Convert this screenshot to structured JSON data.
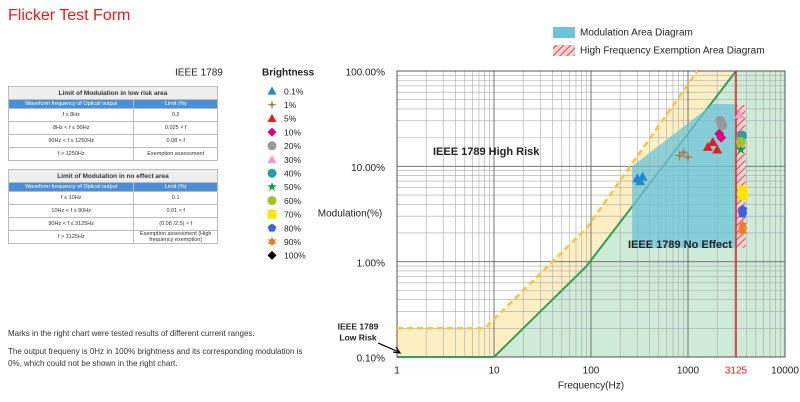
{
  "page_title": "Flicker Test Form",
  "standard_label": "IEEE 1789",
  "tables": [
    {
      "title": "Limit of Modulation in low risk area",
      "header": [
        "Waveform frequency of Optical output",
        "Limit (%)"
      ],
      "rows": [
        [
          "f ≤ 8Hz",
          "0.2"
        ],
        [
          "8Hz < f ≤ 90Hz",
          "0.025 × f"
        ],
        [
          "90Hz < f ≤ 1250Hz",
          "0.08 × f"
        ],
        [
          "f > 1250Hz",
          "Exemption assessment"
        ]
      ]
    },
    {
      "title": "Limit of Modulation in no effect area",
      "header": [
        "Waveform frequency of Optical output",
        "Limit (%)"
      ],
      "rows": [
        [
          "f ≤ 10Hz",
          "0.1"
        ],
        [
          "10Hz < f ≤ 90Hz",
          "0.01 × f"
        ],
        [
          "90Hz < f ≤ 3125Hz",
          "(0.08 /2.5) × f"
        ],
        [
          "f > 3125Hz",
          "Exemption assessment (High frequency exemption)"
        ]
      ]
    }
  ],
  "notes": [
    "Marks in the right chart were tested results of different current ranges.",
    "The output frequeny is 0Hz in 100% brightness and its corresponding modulation is 0%, which could not be shown in the right chart."
  ],
  "chart_data": {
    "type": "scatter",
    "legend_title": "Brightness",
    "x_label": "Frequency(Hz)",
    "y_label": "Modulation(%)",
    "log_x": true,
    "log_y": true,
    "grid": true,
    "xlim": [
      1,
      10000
    ],
    "xticks": [
      1,
      10,
      100,
      1000,
      3125,
      10000
    ],
    "ylim": [
      0.1,
      100
    ],
    "yticks": [
      {
        "value": 0.1,
        "label": "0.10%"
      },
      {
        "value": 1,
        "label": "1.00%"
      },
      {
        "value": 10,
        "label": "10.00%"
      },
      {
        "value": 100,
        "label": "100.00%"
      }
    ],
    "marker_line": {
      "x": 3125,
      "color": "#e02020"
    },
    "no_effect_limit": {
      "x": [
        1,
        10,
        90,
        3125
      ],
      "y": [
        0.1,
        0.1,
        0.9,
        100
      ],
      "color": "#3a9a5a",
      "fill": "#cdebd6"
    },
    "low_risk_limit": {
      "x": [
        1,
        8,
        90,
        1250
      ],
      "y": [
        0.2,
        0.2,
        2.25,
        100
      ],
      "color": "#f3c64a",
      "fill": "#fcefc3"
    },
    "modulation_area": {
      "name": "Modulation Area Diagram",
      "x": [
        265,
        3125,
        3125,
        1800,
        265
      ],
      "y": [
        1.4,
        1.4,
        45,
        45,
        10
      ],
      "color": "#6ec3d8"
    },
    "exemption_area": {
      "name": "High Frequency Exemption Area Diagram",
      "x": [
        3125,
        3900,
        3900,
        3125
      ],
      "y": [
        1.4,
        1.4,
        44,
        44
      ],
      "color": "#e46c6c"
    },
    "annotations": {
      "high_risk": "IEEE 1789 High Risk",
      "no_effect": "IEEE 1789 No Effect",
      "low_risk": [
        "IEEE 1789",
        "Low Risk"
      ]
    },
    "series": [
      {
        "name": "0.1%",
        "color": "#1f8ad0",
        "marker": "triangle",
        "x": [
          300,
          320,
          340
        ],
        "y": [
          7.5,
          7.0,
          7.8
        ]
      },
      {
        "name": "1%",
        "color": "#a67c52",
        "marker": "cross",
        "x": [
          820,
          900,
          1000
        ],
        "y": [
          13,
          14,
          12.5
        ]
      },
      {
        "name": "5%",
        "color": "#e02020",
        "marker": "triangle",
        "x": [
          1600,
          1800,
          2000
        ],
        "y": [
          16,
          18,
          15
        ]
      },
      {
        "name": "10%",
        "color": "#e0007a",
        "marker": "diamond",
        "x": [
          2100,
          2200
        ],
        "y": [
          22,
          20
        ]
      },
      {
        "name": "20%",
        "color": "#999999",
        "marker": "circle",
        "x": [
          2150,
          2250
        ],
        "y": [
          30,
          27
        ]
      },
      {
        "name": "30%",
        "color": "#f4a0c0",
        "marker": "triangle",
        "x": [
          3400
        ],
        "y": [
          35
        ]
      },
      {
        "name": "40%",
        "color": "#2aa0a0",
        "marker": "circle",
        "x": [
          3600
        ],
        "y": [
          21
        ]
      },
      {
        "name": "50%",
        "color": "#1a9a4a",
        "marker": "star",
        "x": [
          3500
        ],
        "y": [
          15
        ]
      },
      {
        "name": "60%",
        "color": "#a0c030",
        "marker": "circle",
        "x": [
          3500
        ],
        "y": [
          18
        ]
      },
      {
        "name": "70%",
        "color": "#ffe600",
        "marker": "square",
        "x": [
          3650,
          3650
        ],
        "y": [
          5.6,
          5.0
        ]
      },
      {
        "name": "80%",
        "color": "#4060e0",
        "marker": "pentagon",
        "x": [
          3650,
          3650
        ],
        "y": [
          3.5,
          3.2
        ]
      },
      {
        "name": "90%",
        "color": "#f07820",
        "marker": "star6",
        "x": [
          3650,
          3650
        ],
        "y": [
          2.4,
          2.1
        ]
      },
      {
        "name": "100%",
        "color": "#000000",
        "marker": "diamond",
        "x": [],
        "y": []
      }
    ]
  }
}
